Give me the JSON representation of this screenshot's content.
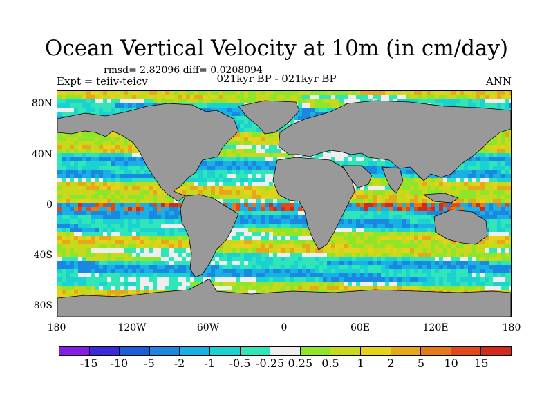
{
  "title": "Ocean Vertical Velocity at 10m (in cm/day)",
  "stats": "rmsd= 2.82096 diff= 0.0208094",
  "expt": "Expt = teiiv-teicv",
  "period": "021kyr BP - 021kyr BP",
  "season": "ANN",
  "lat_labels": [
    "80N",
    "40N",
    "0",
    "40S",
    "80S"
  ],
  "lon_labels": [
    "180",
    "120W",
    "60W",
    "0",
    "60E",
    "120E",
    "180"
  ],
  "colorbar": {
    "labels": [
      "-15",
      "-10",
      "-5",
      "-2",
      "-1",
      "-0.5",
      "-0.25",
      "0.25",
      "0.5",
      "1",
      "2",
      "5",
      "10",
      "15"
    ],
    "colors": [
      "#8a1ae6",
      "#3a2ad9",
      "#1a5fd9",
      "#1a88e0",
      "#1ab0e6",
      "#1ad2d2",
      "#30e6b8",
      "#eeeeee",
      "#8ee62a",
      "#c8d81a",
      "#e6d21a",
      "#e6a81a",
      "#e67a1a",
      "#e04a1a",
      "#d42a1a"
    ]
  },
  "colors": {
    "land": "#999999",
    "coast": "#000000",
    "ocean_base": "#e8e8e8"
  }
}
